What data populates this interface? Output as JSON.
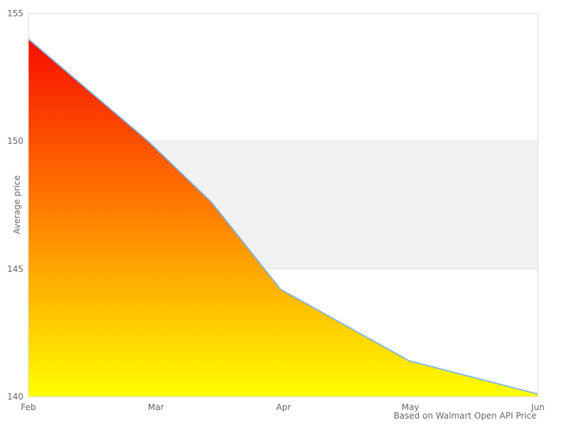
{
  "chart_data": {
    "type": "area",
    "title": "",
    "xlabel": "",
    "ylabel": "Average price",
    "x_unit": "month index (0 = Feb, 4 = Jun)",
    "x_tick_labels": [
      "Feb",
      "Mar",
      "Apr",
      "May",
      "Jun"
    ],
    "y_tick_labels": [
      "155",
      "150",
      "145",
      "140"
    ],
    "y_tick_values": [
      155,
      150,
      145,
      140
    ],
    "xlim": [
      0,
      4
    ],
    "ylim": [
      140,
      155
    ],
    "grid": "off",
    "legend": "none",
    "plot_band": {
      "from": 145,
      "to": 150,
      "color": "#f2f2f2",
      "edge_color": "#e4e4e4"
    },
    "plot_border_color": "#d9d9d9",
    "series": [
      {
        "name": "Average price",
        "points": [
          {
            "x": 0.0,
            "y": 154.0
          },
          {
            "x": 0.94,
            "y": 150.0
          },
          {
            "x": 1.44,
            "y": 147.6
          },
          {
            "x": 1.98,
            "y": 144.2
          },
          {
            "x": 2.99,
            "y": 141.4
          },
          {
            "x": 4.0,
            "y": 140.1
          }
        ],
        "monthly_values": {
          "Feb": 154.0,
          "Mar": 149.7,
          "Apr": 144.2,
          "May": 141.4,
          "Jun": 140.1
        },
        "line_color": "#7cb5ec",
        "fill_gradient": [
          "#f90d00",
          "#ff8200",
          "#ffff00"
        ]
      }
    ],
    "caption": "Based on Walmart Open API Price"
  }
}
